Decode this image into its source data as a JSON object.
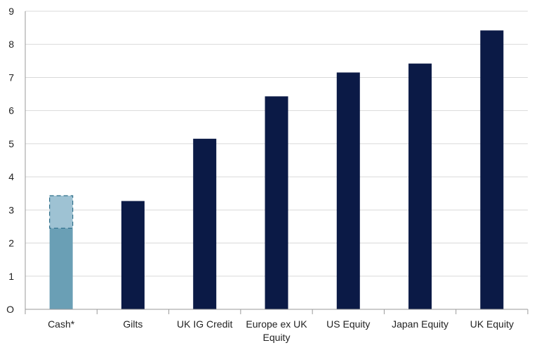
{
  "chart_data": {
    "type": "bar",
    "categories": [
      [
        "Cash*"
      ],
      [
        "Gilts"
      ],
      [
        "UK IG Credit"
      ],
      [
        "Europe ex UK",
        "Equity"
      ],
      [
        "US Equity"
      ],
      [
        "Japan Equity"
      ],
      [
        "UK Equity"
      ]
    ],
    "values": [
      2.45,
      3.27,
      5.15,
      6.43,
      7.15,
      7.42,
      8.42
    ],
    "cash_range_upper": 3.43,
    "ylim": [
      0,
      9
    ],
    "yticks": [
      0,
      1,
      2,
      3,
      4,
      5,
      6,
      7,
      8,
      9
    ],
    "ytick_labels": [
      "O",
      "1",
      "2",
      "3",
      "4",
      "5",
      "6",
      "7",
      "8",
      "9"
    ],
    "grid": true,
    "colors": {
      "bar": "#0b1a46",
      "cash_bar": "#6a9fb5",
      "cash_range": "#9ec2d3",
      "cash_range_border": "#2f6f8a",
      "grid": "#d9d9d9",
      "axis": "#9a9a9a"
    }
  }
}
